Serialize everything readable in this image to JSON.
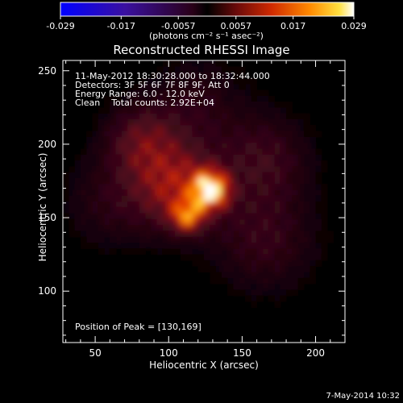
{
  "colorbar": {
    "ticks": [
      "-0.029",
      "-0.017",
      "-0.0057",
      "0.0057",
      "0.017",
      "0.029"
    ],
    "tick_values": [
      -0.029,
      -0.017,
      -0.0057,
      0.0057,
      0.017,
      0.029
    ],
    "units": "(photons cm⁻² s⁻¹ asec⁻²)"
  },
  "annotations": {
    "time": "11-May-2012 18:30:28.000 to 18:32:44.000",
    "detectors": "Detectors: 3F 5F 6F 7F 8F 9F, Att 0",
    "energy": "Energy Range: 6.0 - 12.0 keV",
    "clean": "Clean    Total counts: 2.92E+04",
    "peak": "Position of Peak = [130,169]"
  },
  "datestamp": "7-May-2014 10:32",
  "chart_data": {
    "type": "heatmap",
    "title": "Reconstructed RHESSI Image",
    "xlabel": "Heliocentric X (arcsec)",
    "ylabel": "Heliocentric Y (arcsec)",
    "xlim": [
      28,
      220
    ],
    "ylim": [
      65,
      257
    ],
    "xticks": [
      50,
      100,
      150,
      200
    ],
    "yticks": [
      100,
      150,
      200,
      250
    ],
    "peak": [
      130,
      169
    ],
    "sources": [
      {
        "x": 128,
        "y": 169,
        "sigma": 8,
        "amp": 1.0
      },
      {
        "x": 113,
        "y": 152,
        "sigma": 7,
        "amp": 0.6
      },
      {
        "x": 107,
        "y": 170,
        "sigma": 20,
        "amp": 0.45
      },
      {
        "x": 82,
        "y": 202,
        "sigma": 18,
        "amp": 0.3
      },
      {
        "x": 165,
        "y": 190,
        "sigma": 22,
        "amp": 0.22
      },
      {
        "x": 165,
        "y": 135,
        "sigma": 25,
        "amp": 0.2
      },
      {
        "x": 60,
        "y": 160,
        "sigma": 22,
        "amp": 0.15
      },
      {
        "x": 120,
        "y": 228,
        "sigma": 22,
        "amp": 0.15
      }
    ]
  }
}
